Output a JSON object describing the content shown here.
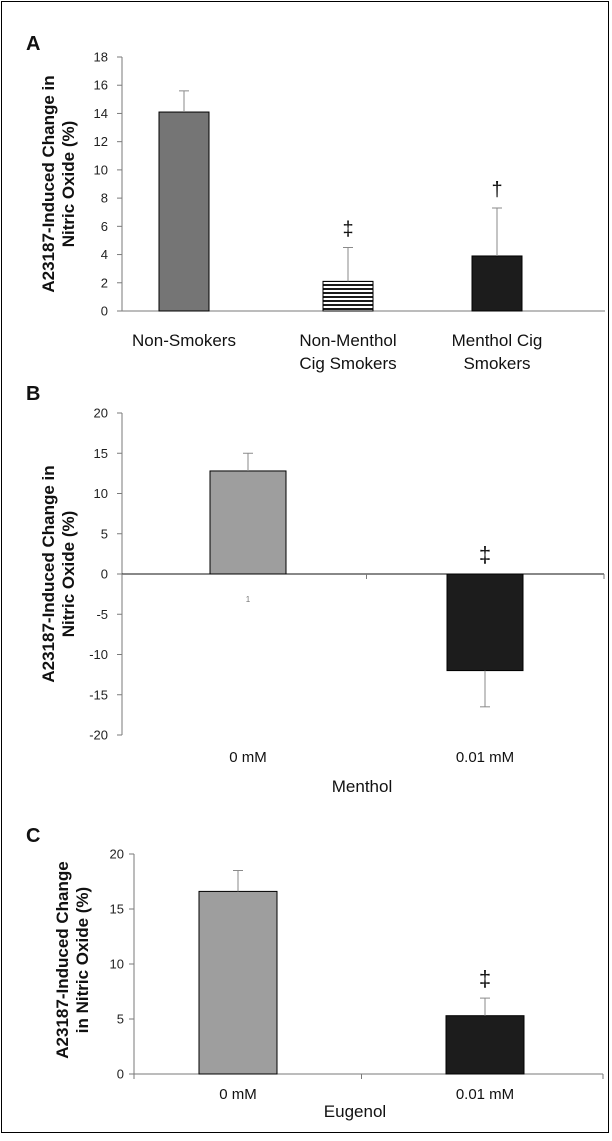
{
  "chart_data": [
    {
      "panel": "A",
      "type": "bar",
      "ylabel": [
        "A23187-Induced Change in",
        "Nitric Oxide (%)"
      ],
      "categories": [
        [
          "Non-Smokers"
        ],
        [
          "Non-Menthol",
          "Cig Smokers"
        ],
        [
          "Menthol Cig",
          "Smokers"
        ]
      ],
      "values": [
        14.1,
        2.1,
        3.9
      ],
      "errors": [
        1.5,
        2.4,
        3.4
      ],
      "markers": [
        "",
        "‡",
        "†"
      ],
      "bar_colors": [
        "#757575",
        "#ffffff",
        "#1c1c1c"
      ],
      "bar_patterns": [
        "solid",
        "horizontal-stripes",
        "solid"
      ],
      "ylim": [
        0,
        18
      ],
      "yticks": [
        0,
        2,
        4,
        6,
        8,
        10,
        12,
        14,
        16,
        18
      ],
      "xlabel": ""
    },
    {
      "panel": "B",
      "type": "bar",
      "ylabel": [
        "A23187-Induced Change in",
        "Nitric Oxide (%)"
      ],
      "categories": [
        [
          "0 mM"
        ],
        [
          "0.01 mM"
        ]
      ],
      "values": [
        12.8,
        -12
      ],
      "errors": [
        2.2,
        4.5
      ],
      "markers": [
        "",
        "‡"
      ],
      "bar_colors": [
        "#9e9e9e",
        "#1c1c1c"
      ],
      "bar_patterns": [
        "solid",
        "solid"
      ],
      "ylim": [
        -20,
        20
      ],
      "yticks": [
        -20,
        -15,
        -10,
        -5,
        0,
        5,
        10,
        15,
        20
      ],
      "xlabel": "Menthol",
      "stray_label": "1"
    },
    {
      "panel": "C",
      "type": "bar",
      "ylabel": [
        "A23187-Induced Change",
        "in Nitric Oxide (%)"
      ],
      "categories": [
        [
          "0 mM"
        ],
        [
          "0.01 mM"
        ]
      ],
      "values": [
        16.6,
        5.3
      ],
      "errors": [
        1.9,
        1.6
      ],
      "markers": [
        "",
        "‡"
      ],
      "bar_colors": [
        "#9e9e9e",
        "#1c1c1c"
      ],
      "bar_patterns": [
        "solid",
        "solid"
      ],
      "ylim": [
        0,
        20
      ],
      "yticks": [
        0,
        5,
        10,
        15,
        20
      ],
      "xlabel": "Eugenol"
    }
  ]
}
